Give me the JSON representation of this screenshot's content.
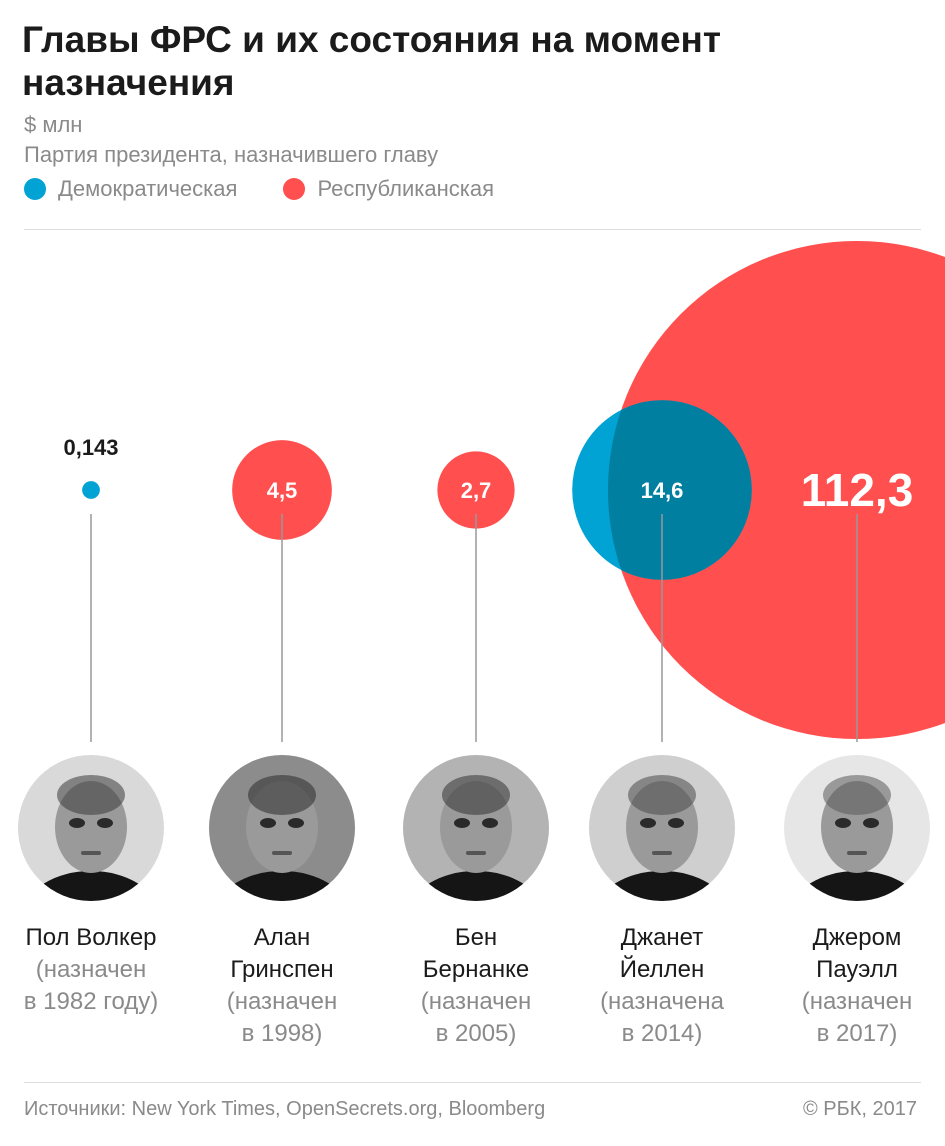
{
  "title": "Главы ФРС и их состояния на момент назначения",
  "units": "$ млн",
  "legend": {
    "caption": "Партия президента, назначившего главу",
    "items": [
      {
        "label": "Демократическая",
        "color": "#00a3d3"
      },
      {
        "label": "Республиканская",
        "color": "#ff4f4f"
      }
    ]
  },
  "chart_data": {
    "type": "bubble",
    "title": "Главы ФРС и их состояния на момент назначения",
    "unit": "$ млн",
    "legend_placement": "top-left",
    "grid": false,
    "categories": [
      "Пол Волкер",
      "Алан Гринспен",
      "Бен Бернанке",
      "Джанет Йеллен",
      "Джером Пауэлл"
    ],
    "points": [
      {
        "name": "Пол Волкер",
        "value": 0.143,
        "label": "0,143",
        "party": "Демократическая",
        "appointed": "1982",
        "color": "#00a3d3"
      },
      {
        "name": "Алан Гринспен",
        "value": 4.5,
        "label": "4,5",
        "party": "Республиканская",
        "appointed": "1998",
        "color": "#ff4f4f"
      },
      {
        "name": "Бен Бернанке",
        "value": 2.7,
        "label": "2,7",
        "party": "Республиканская",
        "appointed": "2005",
        "color": "#ff4f4f"
      },
      {
        "name": "Джанет Йеллен",
        "value": 14.6,
        "label": "14,6",
        "party": "Демократическая",
        "appointed": "2014",
        "color": "#00a3d3"
      },
      {
        "name": "Джером Пауэлл",
        "value": 112.3,
        "label": "112,3",
        "party": "Республиканская",
        "appointed": "2017",
        "color": "#ff4f4f"
      }
    ]
  },
  "people": [
    {
      "name_lines": [
        "Пол Волкер"
      ],
      "date_lines": [
        "(назначен",
        "в 1982 году)"
      ],
      "photo": "volcker-photo"
    },
    {
      "name_lines": [
        "Алан",
        "Гринспен"
      ],
      "date_lines": [
        "(назначен",
        "в 1998)"
      ],
      "photo": "greenspan-photo"
    },
    {
      "name_lines": [
        "Бен",
        "Бернанке"
      ],
      "date_lines": [
        "(назначен",
        "в 2005)"
      ],
      "photo": "bernanke-photo"
    },
    {
      "name_lines": [
        "Джанет",
        "Йеллен"
      ],
      "date_lines": [
        "(назначена",
        "в 2014)"
      ],
      "photo": "yellen-photo"
    },
    {
      "name_lines": [
        "Джером",
        "Пауэлл"
      ],
      "date_lines": [
        "(назначен",
        "в 2017)"
      ],
      "photo": "powell-photo"
    }
  ],
  "footer": {
    "sources": "Источники: New York Times, OpenSecrets.org, Bloomberg",
    "copyright": "© РБК, 2017"
  },
  "colors": {
    "overlap": "#007fa0",
    "line": "#999999",
    "label_dark": "#1b1b1b",
    "label_light": "#ffffff"
  }
}
